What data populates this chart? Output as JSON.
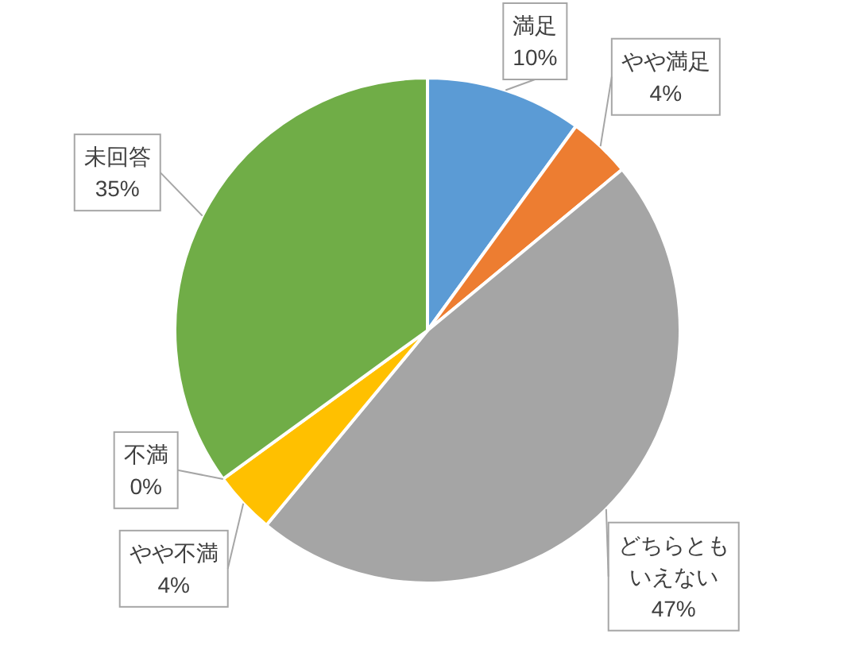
{
  "chart_data": {
    "type": "pie",
    "categories": [
      "満足",
      "やや満足",
      "どちらともいえない",
      "やや不満",
      "不満",
      "未回答"
    ],
    "values": [
      10,
      4,
      47,
      4,
      0,
      35
    ],
    "colors": [
      "#5b9bd5",
      "#ed7d31",
      "#a5a5a5",
      "#ffc000",
      "#4472c4",
      "#70ad47"
    ],
    "value_labels": [
      "10%",
      "4%",
      "47%",
      "4%",
      "0%",
      "35%"
    ]
  }
}
